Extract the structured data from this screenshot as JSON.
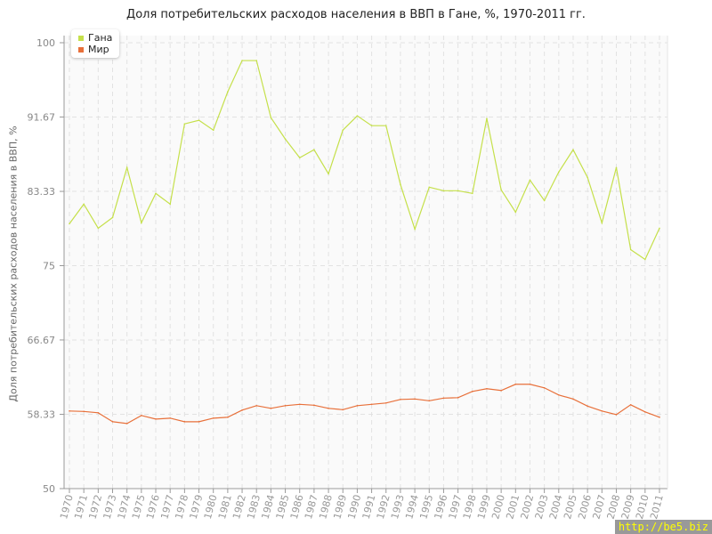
{
  "chart_data": {
    "type": "line",
    "title": "Доля потребительских расходов населения в ВВП в Гане, %, 1970-2011 гг.",
    "xlabel": "",
    "ylabel": "Доля потребительских расходов населения в ВВП, %",
    "ylim": [
      50,
      100
    ],
    "yticks": [
      "50",
      "58.33",
      "66.67",
      "75",
      "83.33",
      "91.67",
      "100"
    ],
    "grid": true,
    "legend": "top-left",
    "x": [
      1970,
      1971,
      1972,
      1973,
      1974,
      1975,
      1976,
      1977,
      1978,
      1979,
      1980,
      1981,
      1982,
      1983,
      1984,
      1985,
      1986,
      1987,
      1988,
      1989,
      1990,
      1991,
      1992,
      1993,
      1994,
      1995,
      1996,
      1997,
      1998,
      1999,
      2000,
      2001,
      2002,
      2003,
      2004,
      2005,
      2006,
      2007,
      2008,
      2009,
      2010,
      2011
    ],
    "series": [
      {
        "name": "Гана",
        "color": "#c5e04a",
        "values": [
          79.7,
          81.9,
          79.2,
          80.4,
          86.0,
          79.8,
          83.1,
          81.9,
          90.9,
          91.3,
          90.2,
          94.5,
          98.0,
          98.0,
          91.6,
          89.2,
          87.1,
          88.0,
          85.3,
          90.2,
          91.8,
          90.7,
          90.7,
          84.1,
          79.1,
          83.8,
          83.4,
          83.4,
          83.1,
          91.5,
          83.5,
          81.0,
          84.6,
          82.3,
          85.5,
          88.0,
          84.9,
          79.8,
          86.0,
          76.8,
          75.7,
          79.2
        ]
      },
      {
        "name": "Мир",
        "color": "#e8703a",
        "values": [
          58.7,
          58.65,
          58.5,
          57.5,
          57.3,
          58.2,
          57.8,
          57.9,
          57.5,
          57.5,
          57.9,
          58.0,
          58.8,
          59.3,
          59.0,
          59.3,
          59.45,
          59.35,
          59.0,
          58.85,
          59.3,
          59.45,
          59.6,
          60.0,
          60.05,
          59.85,
          60.15,
          60.2,
          60.9,
          61.2,
          61.0,
          61.7,
          61.7,
          61.3,
          60.5,
          60.05,
          59.25,
          58.7,
          58.3,
          59.4,
          58.6,
          58.0
        ]
      }
    ]
  },
  "watermark": "http://be5.biz"
}
